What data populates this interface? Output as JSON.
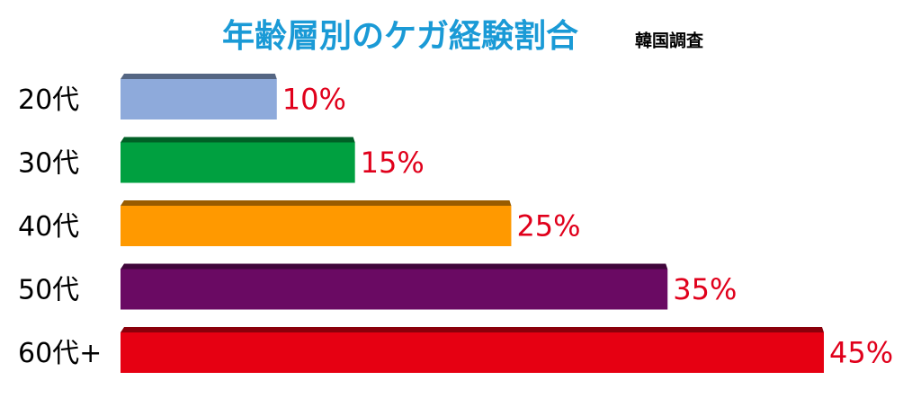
{
  "chart_data": {
    "type": "bar",
    "orientation": "horizontal",
    "title": "年齢層別のケガ経験割合",
    "subtitle": "韓国調査",
    "categories": [
      "20代",
      "30代",
      "40代",
      "50代",
      "60代+"
    ],
    "values": [
      10,
      15,
      25,
      35,
      45
    ],
    "value_labels": [
      "10%",
      "15%",
      "25%",
      "35%",
      "45%"
    ],
    "colors": [
      "#8eaadb",
      "#00a040",
      "#ff9900",
      "#6a0a63",
      "#e60012"
    ],
    "title_color": "#1a9ad6",
    "value_label_color": "#e0001b"
  }
}
